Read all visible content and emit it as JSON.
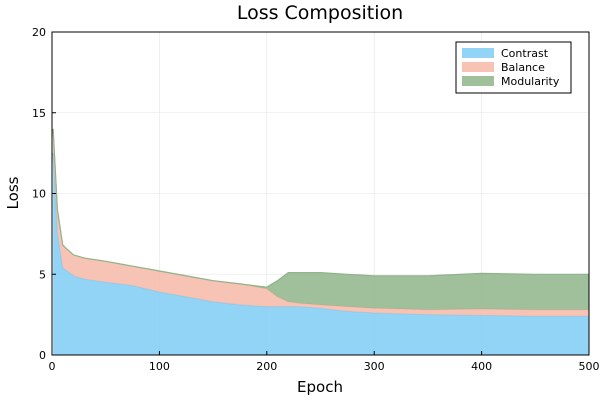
{
  "chart_data": {
    "type": "area",
    "title": "Loss Composition",
    "xlabel": "Epoch",
    "ylabel": "Loss",
    "xlim": [
      0,
      500
    ],
    "ylim": [
      0,
      20
    ],
    "x_ticks": [
      "0",
      "100",
      "200",
      "300",
      "400",
      "500"
    ],
    "y_ticks": [
      "0",
      "5",
      "10",
      "15",
      "20"
    ],
    "grid": true,
    "legend_position": "top-right",
    "stacked": true,
    "x": [
      1,
      5,
      10,
      20,
      30,
      50,
      75,
      100,
      125,
      150,
      175,
      200,
      210,
      220,
      230,
      250,
      275,
      300,
      350,
      400,
      450,
      500
    ],
    "series": [
      {
        "name": "Contrast",
        "color": "#7fcdf5",
        "values": [
          12.5,
          7.5,
          5.4,
          4.9,
          4.7,
          4.5,
          4.3,
          3.9,
          3.6,
          3.3,
          3.1,
          3.0,
          3.0,
          3.0,
          3.0,
          2.9,
          2.7,
          2.6,
          2.5,
          2.45,
          2.4,
          2.4
        ]
      },
      {
        "name": "Balance",
        "color": "#f6b8a8",
        "values": [
          1.5,
          1.5,
          1.4,
          1.3,
          1.3,
          1.3,
          1.2,
          1.3,
          1.3,
          1.3,
          1.3,
          1.1,
          0.6,
          0.3,
          0.2,
          0.2,
          0.3,
          0.3,
          0.3,
          0.4,
          0.4,
          0.4
        ]
      },
      {
        "name": "Modularity",
        "color": "#8fb48a",
        "values": [
          0,
          0,
          0,
          0,
          0,
          0,
          0,
          0,
          0,
          0,
          0,
          0.1,
          1.0,
          1.8,
          1.9,
          2.0,
          2.0,
          2.0,
          2.1,
          2.2,
          2.2,
          2.2
        ]
      }
    ]
  }
}
